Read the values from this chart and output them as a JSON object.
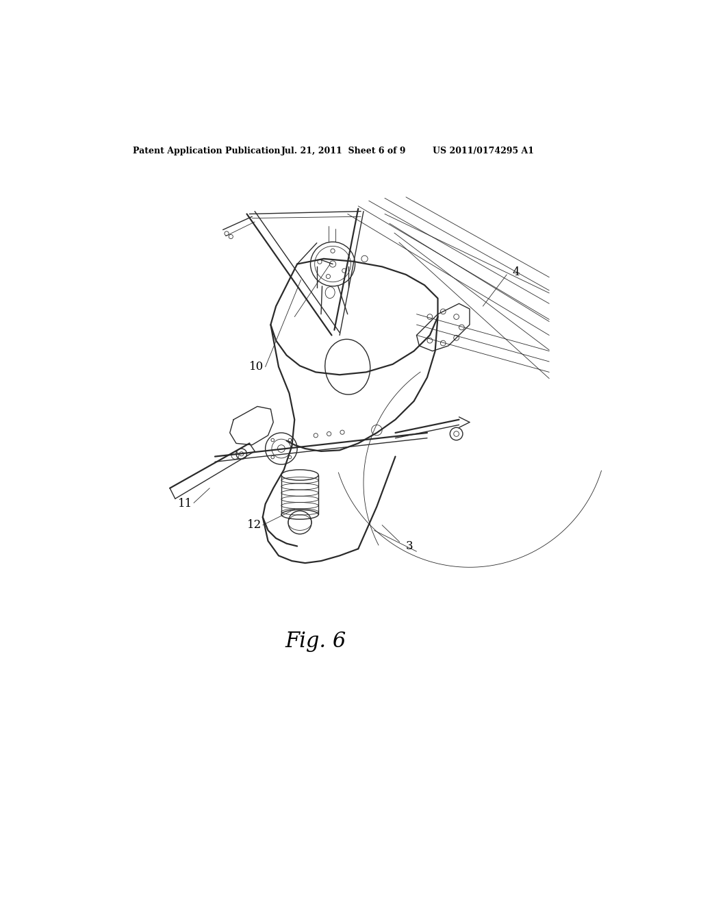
{
  "bg_color": "#ffffff",
  "header_left": "Patent Application Publication",
  "header_mid": "Jul. 21, 2011  Sheet 6 of 9",
  "header_right": "US 2011/0174295 A1",
  "fig_label": "Fig. 6",
  "line_color": "#2a2a2a",
  "lw_main": 1.0,
  "lw_thick": 1.6,
  "lw_thin": 0.6,
  "label_fontsize": 12,
  "header_fontsize": 9
}
